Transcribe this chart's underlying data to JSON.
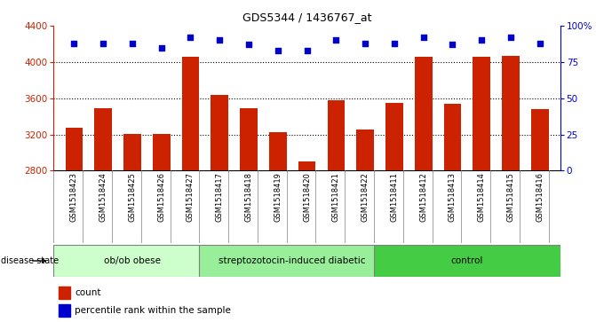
{
  "title": "GDS5344 / 1436767_at",
  "samples": [
    "GSM1518423",
    "GSM1518424",
    "GSM1518425",
    "GSM1518426",
    "GSM1518427",
    "GSM1518417",
    "GSM1518418",
    "GSM1518419",
    "GSM1518420",
    "GSM1518421",
    "GSM1518422",
    "GSM1518411",
    "GSM1518412",
    "GSM1518413",
    "GSM1518414",
    "GSM1518415",
    "GSM1518416"
  ],
  "counts": [
    3270,
    3490,
    3205,
    3210,
    4060,
    3640,
    3490,
    3225,
    2900,
    3575,
    3255,
    3550,
    4060,
    3540,
    4060,
    4070,
    3480
  ],
  "percentiles": [
    88,
    88,
    88,
    85,
    92,
    90,
    87,
    83,
    83,
    90,
    88,
    88,
    92,
    87,
    90,
    92,
    88
  ],
  "bar_color": "#cc2200",
  "dot_color": "#0000cc",
  "ylim_left": [
    2800,
    4400
  ],
  "ylim_right": [
    0,
    100
  ],
  "yticks_left": [
    2800,
    3200,
    3600,
    4000,
    4400
  ],
  "yticks_right": [
    0,
    25,
    50,
    75,
    100
  ],
  "yticklabels_right": [
    "0",
    "25",
    "50",
    "75",
    "100%"
  ],
  "grid_values": [
    3200,
    3600,
    4000
  ],
  "groups": [
    {
      "label": "ob/ob obese",
      "start": 0,
      "end": 5,
      "color": "#ccffcc"
    },
    {
      "label": "streptozotocin-induced diabetic",
      "start": 5,
      "end": 11,
      "color": "#99ee99"
    },
    {
      "label": "control",
      "start": 11,
      "end": 17,
      "color": "#44cc44"
    }
  ],
  "disease_state_label": "disease state",
  "legend_count_label": "count",
  "legend_percentile_label": "percentile rank within the sample",
  "xtick_bg_color": "#d4d4d4",
  "plot_bg_color": "#ffffff",
  "fig_bg_color": "#ffffff"
}
